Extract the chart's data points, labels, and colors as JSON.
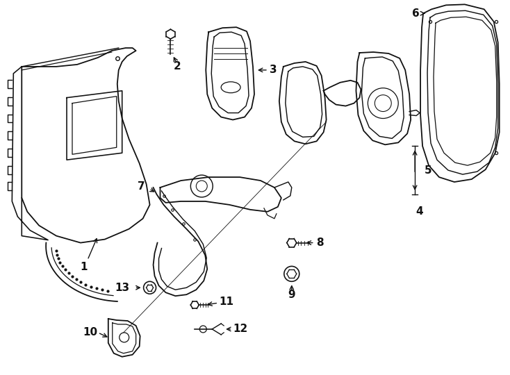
{
  "background_color": "#ffffff",
  "line_color": "#111111",
  "fig_width": 7.34,
  "fig_height": 5.4,
  "dpi": 100
}
